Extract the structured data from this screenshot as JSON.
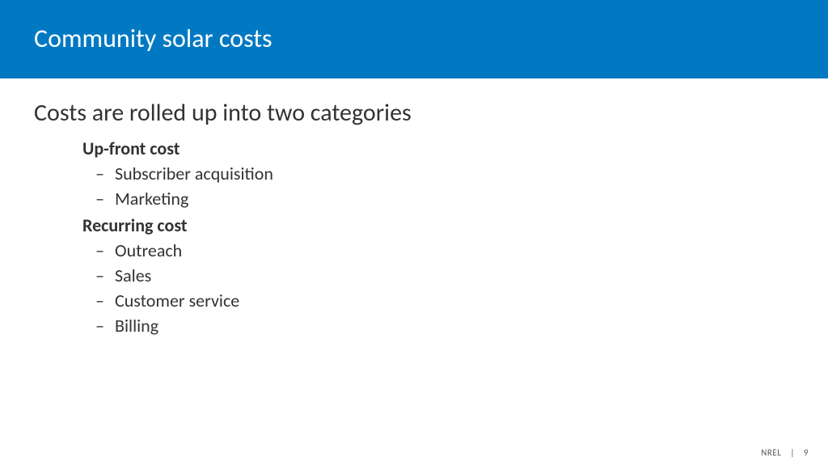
{
  "colors": {
    "title_bar_bg": "#0079c2",
    "title_text": "#ffffff",
    "body_text": "#333333",
    "footer_text": "#595959"
  },
  "typography": {
    "title_fontsize": 32,
    "heading_fontsize": 30,
    "category_fontsize": 22,
    "bullet_fontsize": 22
  },
  "title": "Community solar costs",
  "heading": "Costs are rolled up into two categories",
  "sections": [
    {
      "label": "Up-front cost",
      "items": [
        "Subscriber acquisition",
        "Marketing"
      ]
    },
    {
      "label": "Recurring cost",
      "items": [
        "Outreach",
        "Sales",
        "Customer service",
        "Billing"
      ]
    }
  ],
  "footer": {
    "org": "NREL",
    "sep": "|",
    "page": "9"
  }
}
